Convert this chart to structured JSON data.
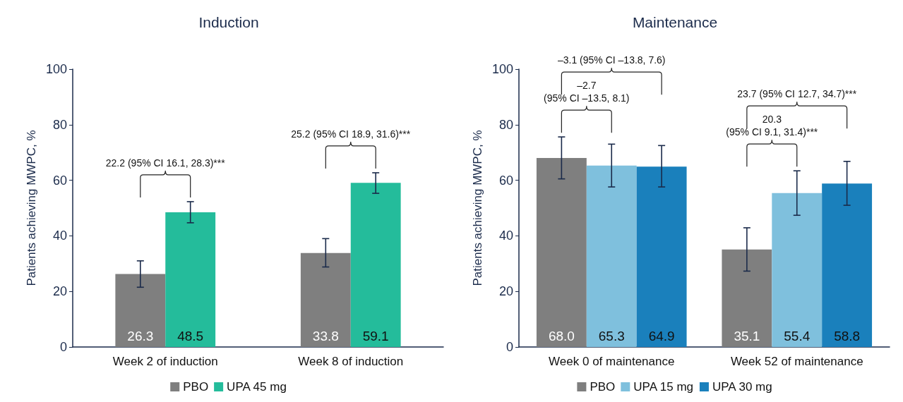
{
  "chart_data": [
    {
      "type": "bar",
      "title": "Induction",
      "ylabel": "Patients achieving MWPC, %",
      "categories": [
        "Week 2 of induction",
        "Week 8 of induction"
      ],
      "series": [
        {
          "name": "PBO",
          "color": "#7f7f7f",
          "values": [
            26.3,
            33.8
          ],
          "value_labels": [
            "26.3",
            "33.8"
          ],
          "errors": [
            [
              21.5,
              31
            ],
            [
              28.8,
              39
            ]
          ]
        },
        {
          "name": "UPA 45 mg",
          "color": "#24bc9b",
          "values": [
            48.5,
            59.1
          ],
          "value_labels": [
            "48.5",
            "59.1"
          ],
          "errors": [
            [
              44.7,
              52.3
            ],
            [
              55.3,
              62.7
            ]
          ]
        }
      ],
      "ylim": [
        0,
        100
      ],
      "yticks": [
        0,
        20,
        40,
        60,
        80,
        100
      ],
      "grid": false,
      "legend": "bottom",
      "annotations": [
        "22.2 (95% CI 16.1, 28.3)***",
        "25.2 (95% CI 18.9, 31.6)***"
      ]
    },
    {
      "type": "bar",
      "title": "Maintenance",
      "ylabel": "Patients achieving MWPC, %",
      "categories": [
        "Week 0 of maintenance",
        "Week 52 of maintenance"
      ],
      "series": [
        {
          "name": "PBO",
          "color": "#7f7f7f",
          "values": [
            68.0,
            35.1
          ],
          "value_labels": [
            "68.0",
            "35.1"
          ],
          "errors": [
            [
              60.5,
              75.6
            ],
            [
              27.3,
              42.9
            ]
          ]
        },
        {
          "name": "UPA 15 mg",
          "color": "#7fc0dd",
          "values": [
            65.3,
            55.4
          ],
          "value_labels": [
            "65.3",
            "55.4"
          ],
          "errors": [
            [
              57.6,
              73
            ],
            [
              47.4,
              63.4
            ]
          ]
        },
        {
          "name": "UPA 30 mg",
          "color": "#1a80bc",
          "values": [
            64.9,
            58.8
          ],
          "value_labels": [
            "64.9",
            "58.8"
          ],
          "errors": [
            [
              57.6,
              72.5
            ],
            [
              51,
              66.8
            ]
          ]
        }
      ],
      "ylim": [
        0,
        100
      ],
      "yticks": [
        0,
        20,
        40,
        60,
        80,
        100
      ],
      "grid": false,
      "legend": "bottom",
      "annotations": [
        "–3.1 (95% CI –13.8, 7.6)",
        "–2.7\n(95% CI –13.5, 8.1)",
        "23.7 (95% CI 12.7, 34.7)***",
        "20.3\n(95% CI 9.1, 31.4)***"
      ]
    }
  ]
}
